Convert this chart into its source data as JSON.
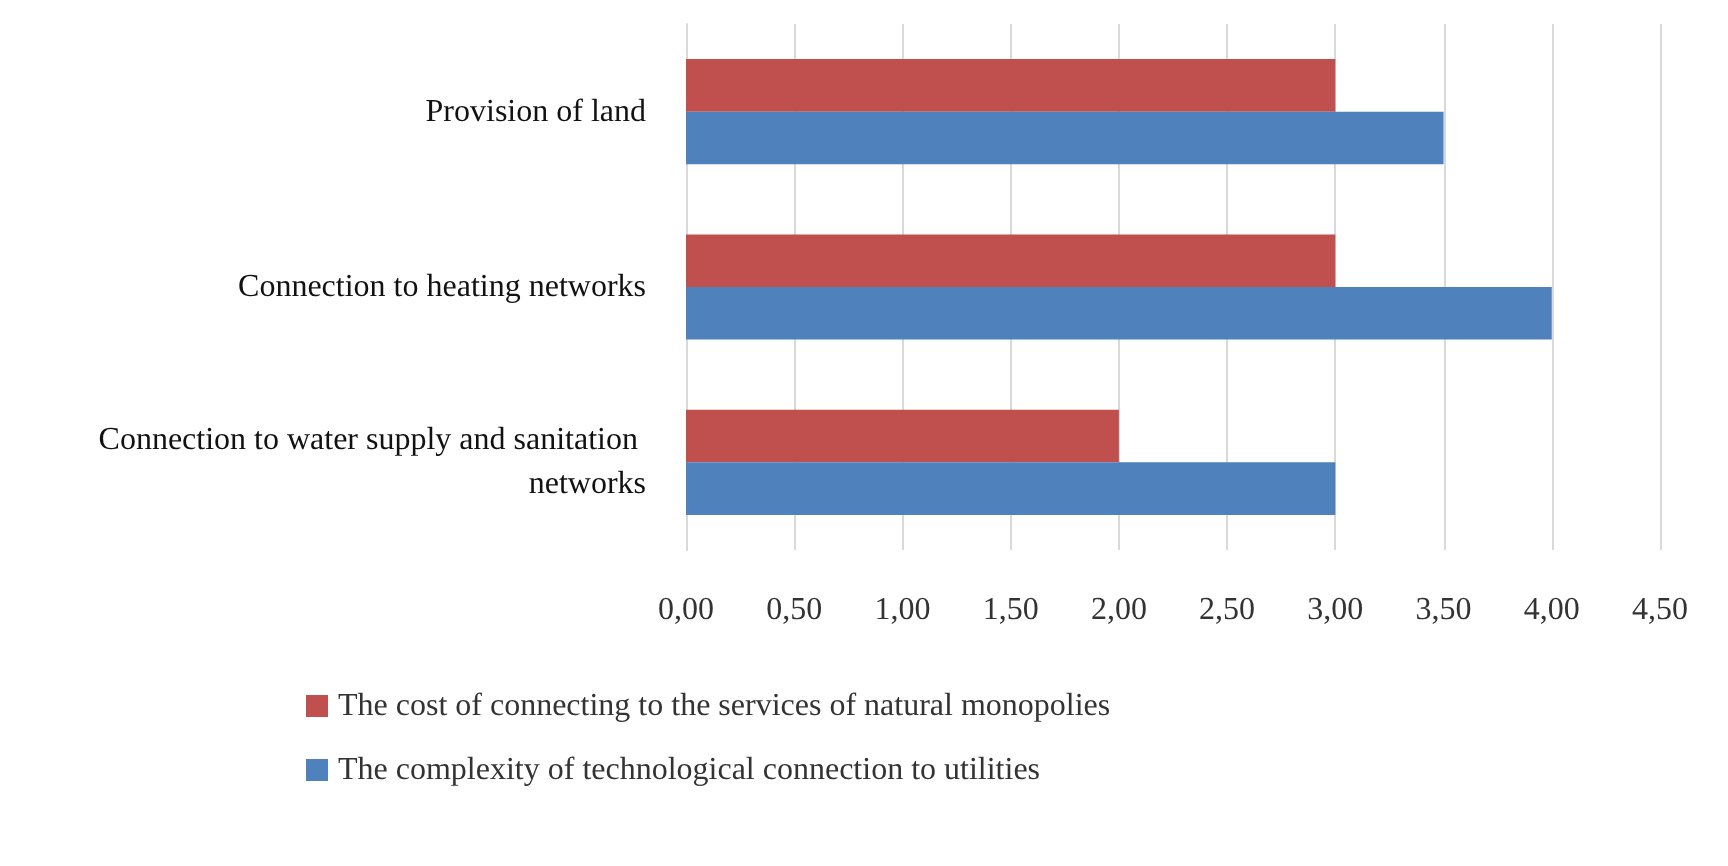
{
  "chart_data": {
    "type": "bar",
    "orientation": "horizontal",
    "categories": [
      "Provision of land",
      "Connection to heating networks",
      "Connection to water supply and sanitation networks"
    ],
    "series": [
      {
        "name": "The cost of connecting to the services of natural monopolies",
        "color": "#c0504d",
        "values": [
          3.0,
          3.0,
          2.0
        ]
      },
      {
        "name": "The complexity of technological connection to utilities",
        "color": "#4f81bd",
        "values": [
          3.5,
          4.0,
          3.0
        ]
      }
    ],
    "xlim": [
      0,
      4.5
    ],
    "xticks": [
      {
        "value": 0,
        "label": "0,00"
      },
      {
        "value": 0.5,
        "label": "0,50"
      },
      {
        "value": 1,
        "label": "1,00"
      },
      {
        "value": 1.5,
        "label": "1,50"
      },
      {
        "value": 2,
        "label": "2,00"
      },
      {
        "value": 2.5,
        "label": "2,50"
      },
      {
        "value": 3,
        "label": "3,00"
      },
      {
        "value": 3.5,
        "label": "3,50"
      },
      {
        "value": 4,
        "label": "4,00"
      },
      {
        "value": 4.5,
        "label": "4,50"
      }
    ],
    "grid": "x",
    "legend": "bottom"
  }
}
